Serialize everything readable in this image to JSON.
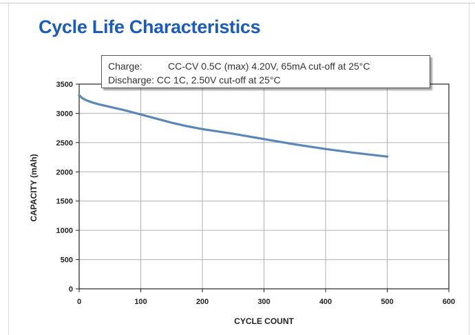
{
  "page": {
    "title": "Cycle Life Characteristics"
  },
  "conditions": {
    "charge_label": "Charge:",
    "charge_text": "CC-CV 0.5C (max) 4.20V, 65mA cut-off at 25°C",
    "discharge_label": "Discharge:",
    "discharge_text": "CC 1C, 2.50V cut-off at 25°C"
  },
  "colors": {
    "title": "#1b5bbd",
    "series": "#5b86b8",
    "grid": "#b0b0b0"
  },
  "chart_data": {
    "type": "line",
    "title": "",
    "xlabel": "CYCLE COUNT",
    "ylabel": "CAPACITY (mAh)",
    "xlim": [
      0,
      600
    ],
    "ylim": [
      0,
      3500
    ],
    "xticks": [
      0,
      100,
      200,
      300,
      400,
      500,
      600
    ],
    "yticks": [
      0,
      500,
      1000,
      1500,
      2000,
      2500,
      3000,
      3500
    ],
    "grid": true,
    "legend": "none",
    "series": [
      {
        "x": [
          0,
          5,
          10,
          20,
          30,
          50,
          75,
          100,
          125,
          150,
          175,
          200,
          250,
          300,
          350,
          400,
          450,
          500
        ],
        "y": [
          3310,
          3260,
          3230,
          3190,
          3160,
          3110,
          3050,
          2980,
          2910,
          2840,
          2780,
          2730,
          2650,
          2560,
          2470,
          2390,
          2320,
          2260
        ]
      }
    ]
  }
}
